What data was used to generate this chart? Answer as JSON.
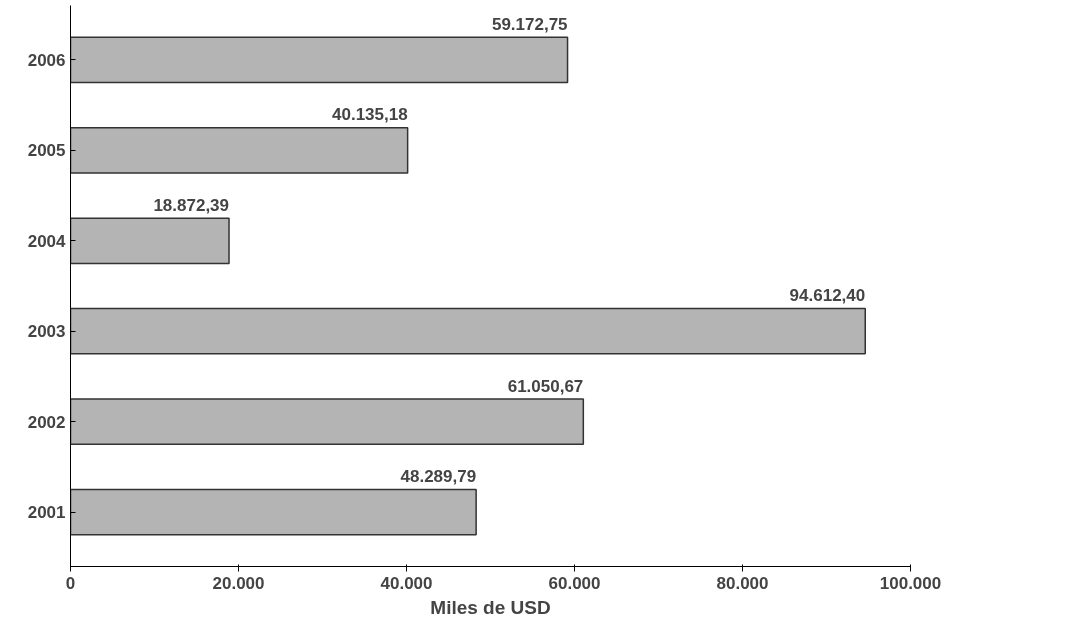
{
  "chart_data": {
    "type": "bar",
    "orientation": "horizontal",
    "xlabel": "Miles de USD",
    "categories": [
      "2006",
      "2005",
      "2004",
      "2003",
      "2002",
      "2001"
    ],
    "values": [
      59172.75,
      40135.18,
      18872.39,
      94612.4,
      61050.67,
      48289.79
    ],
    "value_labels": [
      "59.172,75",
      "40.135,18",
      "18.872,39",
      "94.612,40",
      "61.050,67",
      "48.289,79"
    ],
    "color": "#b4b4b4",
    "xlim": [
      0,
      100000
    ],
    "xticks": [
      0,
      {
        "value": 20000,
        "label": "20.000"
      },
      {
        "value": 40000,
        "label": "40.000"
      },
      {
        "value": 60000,
        "label": "60.000"
      },
      {
        "value": 80000,
        "label": "80.000"
      },
      {
        "value": 100000,
        "label": "100.000"
      }
    ],
    "grid": false
  }
}
